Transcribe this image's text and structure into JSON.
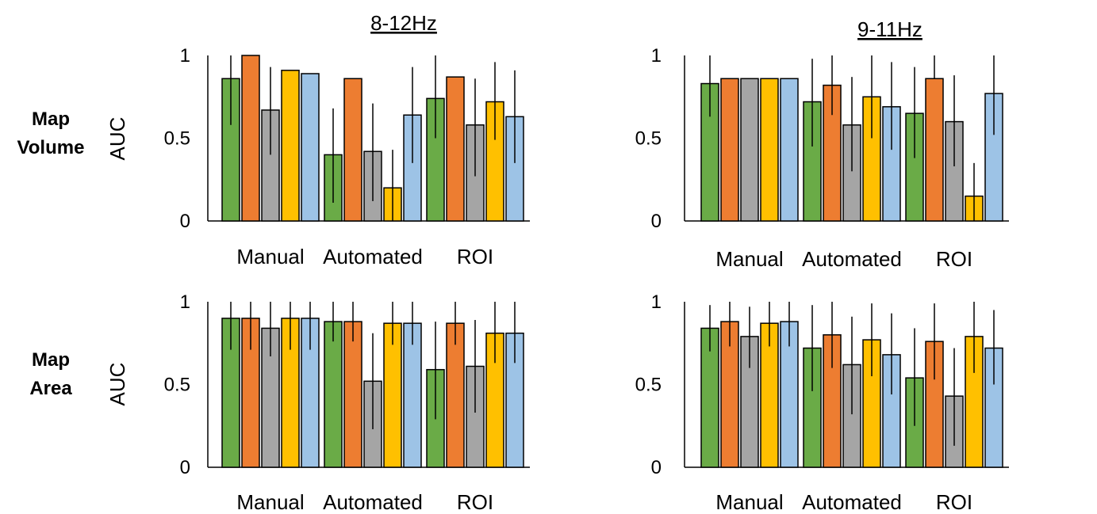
{
  "figure": {
    "column_titles": [
      "8-12Hz",
      "9-11Hz"
    ],
    "row_labels": [
      [
        "Map",
        "Volume"
      ],
      [
        "Map",
        "Area"
      ]
    ]
  },
  "colors": [
    "#6aab47",
    "#ed7d31",
    "#a5a5a5",
    "#ffc000",
    "#9dc3e6"
  ],
  "chart_data": [
    {
      "type": "bar",
      "title": "8-12Hz",
      "ylabel": "AUC",
      "ylim": [
        0,
        1
      ],
      "yticks": [
        0,
        0.5,
        1
      ],
      "ytick_labels": [
        "0",
        "0.5",
        "1"
      ],
      "categories": [
        "Manual",
        "Automated",
        "ROI"
      ],
      "series": [
        {
          "values": [
            0.86,
            0.4,
            0.74
          ],
          "err_low": [
            0.58,
            0.11,
            0.5
          ],
          "err_high": [
            1.0,
            0.68,
            1.0
          ]
        },
        {
          "values": [
            1.0,
            0.86,
            0.87
          ],
          "err_low": [
            1.0,
            1.0,
            1.0
          ],
          "err_high": [
            1.0,
            1.0,
            1.0
          ]
        },
        {
          "values": [
            0.67,
            0.42,
            0.58
          ],
          "err_low": [
            0.4,
            0.12,
            0.27
          ],
          "err_high": [
            0.93,
            0.71,
            0.86
          ]
        },
        {
          "values": [
            0.91,
            0.2,
            0.72
          ],
          "err_low": [
            1.0,
            0.0,
            0.49
          ],
          "err_high": [
            1.0,
            0.43,
            0.96
          ]
        },
        {
          "values": [
            0.89,
            0.64,
            0.63
          ],
          "err_low": [
            1.0,
            0.35,
            0.35
          ],
          "err_high": [
            1.0,
            0.93,
            0.91
          ]
        }
      ]
    },
    {
      "type": "bar",
      "title": "9-11Hz",
      "ylabel": "",
      "ylim": [
        0,
        1
      ],
      "yticks": [
        0,
        0.5,
        1
      ],
      "ytick_labels": [
        "0",
        "0.5",
        "1"
      ],
      "categories": [
        "Manual",
        "Automated",
        "ROI"
      ],
      "series": [
        {
          "values": [
            0.83,
            0.72,
            0.65
          ],
          "err_low": [
            0.63,
            0.45,
            0.38
          ],
          "err_high": [
            1.0,
            0.98,
            0.93
          ]
        },
        {
          "values": [
            0.86,
            0.82,
            0.86
          ],
          "err_low": [
            0.86,
            0.64,
            0.86
          ],
          "err_high": [
            0.86,
            1.0,
            1.0
          ]
        },
        {
          "values": [
            0.86,
            0.58,
            0.6
          ],
          "err_low": [
            0.86,
            0.3,
            0.33
          ],
          "err_high": [
            0.86,
            0.87,
            0.88
          ]
        },
        {
          "values": [
            0.86,
            0.75,
            0.15
          ],
          "err_low": [
            0.86,
            0.5,
            0.0
          ],
          "err_high": [
            0.86,
            1.0,
            0.35
          ]
        },
        {
          "values": [
            0.86,
            0.69,
            0.77
          ],
          "err_low": [
            0.86,
            0.43,
            0.52
          ],
          "err_high": [
            0.86,
            0.96,
            1.0
          ]
        }
      ]
    },
    {
      "type": "bar",
      "title": "",
      "ylabel": "AUC",
      "ylim": [
        0,
        1
      ],
      "yticks": [
        0,
        0.5,
        1
      ],
      "ytick_labels": [
        "0",
        "0.5",
        "1"
      ],
      "categories": [
        "Manual",
        "Automated",
        "ROI"
      ],
      "series": [
        {
          "values": [
            0.9,
            0.88,
            0.59
          ],
          "err_low": [
            0.71,
            0.76,
            0.29
          ],
          "err_high": [
            1.0,
            1.0,
            0.88
          ]
        },
        {
          "values": [
            0.9,
            0.88,
            0.87
          ],
          "err_low": [
            0.71,
            0.76,
            0.74
          ],
          "err_high": [
            1.0,
            1.0,
            1.0
          ]
        },
        {
          "values": [
            0.84,
            0.52,
            0.61
          ],
          "err_low": [
            0.67,
            0.23,
            0.33
          ],
          "err_high": [
            1.0,
            0.81,
            0.89
          ]
        },
        {
          "values": [
            0.9,
            0.87,
            0.81
          ],
          "err_low": [
            0.71,
            0.74,
            0.63
          ],
          "err_high": [
            1.0,
            1.0,
            1.0
          ]
        },
        {
          "values": [
            0.9,
            0.87,
            0.81
          ],
          "err_low": [
            0.71,
            0.74,
            0.63
          ],
          "err_high": [
            1.0,
            1.0,
            1.0
          ]
        }
      ]
    },
    {
      "type": "bar",
      "title": "",
      "ylabel": "",
      "ylim": [
        0,
        1
      ],
      "yticks": [
        0,
        0.5,
        1
      ],
      "ytick_labels": [
        "0",
        "0.5",
        "1"
      ],
      "categories": [
        "Manual",
        "Automated",
        "ROI"
      ],
      "series": [
        {
          "values": [
            0.84,
            0.72,
            0.54
          ],
          "err_low": [
            0.7,
            0.46,
            0.25
          ],
          "err_high": [
            0.98,
            0.98,
            0.84
          ]
        },
        {
          "values": [
            0.88,
            0.8,
            0.76
          ],
          "err_low": [
            0.73,
            0.6,
            0.53
          ],
          "err_high": [
            1.0,
            1.0,
            0.99
          ]
        },
        {
          "values": [
            0.79,
            0.62,
            0.43
          ],
          "err_low": [
            0.6,
            0.32,
            0.13
          ],
          "err_high": [
            0.97,
            0.91,
            0.72
          ]
        },
        {
          "values": [
            0.87,
            0.77,
            0.79
          ],
          "err_low": [
            0.73,
            0.55,
            0.57
          ],
          "err_high": [
            1.0,
            0.99,
            1.0
          ]
        },
        {
          "values": [
            0.88,
            0.68,
            0.72
          ],
          "err_low": [
            0.73,
            0.44,
            0.5
          ],
          "err_high": [
            1.0,
            0.93,
            0.95
          ]
        }
      ]
    }
  ]
}
